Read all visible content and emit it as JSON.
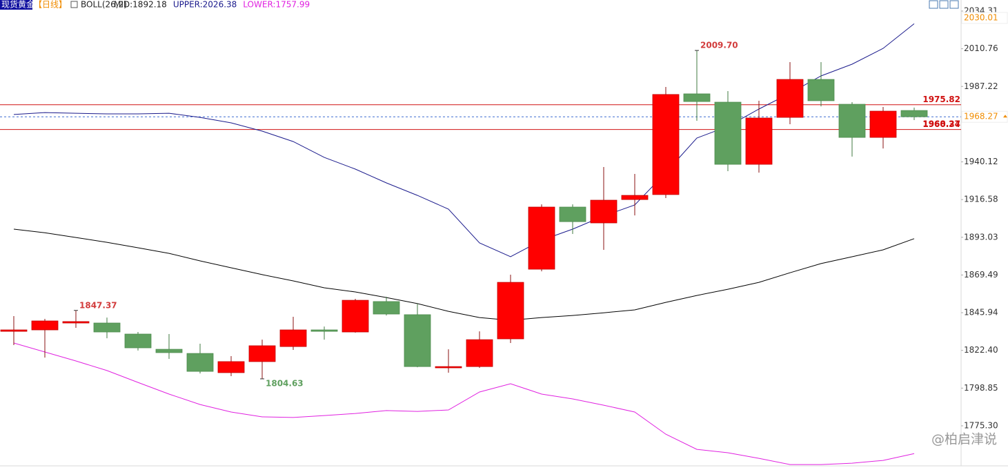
{
  "chart_data": {
    "type": "candlestick",
    "symbol": "现货黄金",
    "period": "【日线】",
    "indicator": "BOLL(26,2)",
    "watermark": "@柏启津说",
    "up_color": "#ff0000",
    "down_color": "#5fa05f",
    "open": [
      1834.3,
      1835.2,
      1839.5,
      1839.5,
      1832.6,
      1823.1,
      1820.5,
      1808.5,
      1815.4,
      1824.8,
      1835.2,
      1833.9,
      1852.9,
      1844.7,
      1811.5,
      1812.3,
      1829.6,
      1873.1,
      1911.9,
      1902.0,
      1916.6,
      1919.7,
      1982.6,
      1977.4,
      1938.6,
      1967.9,
      1991.6,
      1976.1,
      1955.4,
      1972.2
    ],
    "high": [
      1843.8,
      1842.1,
      1847.37,
      1842.9,
      1833.9,
      1832.6,
      1826.6,
      1818.8,
      1829.1,
      1843.4,
      1837.3,
      1854.6,
      1855.9,
      1851.6,
      1823.1,
      1834.3,
      1869.7,
      1913.6,
      1913.6,
      1936.9,
      1932.6,
      1986.9,
      2009.7,
      1984.3,
      1978.3,
      2002.4,
      2002.4,
      1977.4,
      1974.4,
      1974.0
    ],
    "low": [
      1825.7,
      1817.9,
      1836.5,
      1830.0,
      1822.3,
      1817.1,
      1808.0,
      1806.3,
      1804.63,
      1822.7,
      1829.1,
      1833.5,
      1844.2,
      1811.9,
      1808.5,
      1811.5,
      1827.0,
      1871.8,
      1895.1,
      1885.2,
      1906.7,
      1917.5,
      1965.8,
      1934.3,
      1933.4,
      1963.6,
      1974.8,
      1943.4,
      1948.5,
      1966.2
    ],
    "close": [
      1835.2,
      1840.8,
      1840.4,
      1833.9,
      1824.0,
      1821.0,
      1809.3,
      1815.4,
      1825.3,
      1835.2,
      1834.3,
      1853.7,
      1845.1,
      1812.3,
      1812.3,
      1829.1,
      1864.9,
      1911.9,
      1902.8,
      1916.2,
      1919.2,
      1982.2,
      1977.8,
      1938.6,
      1967.5,
      1991.6,
      1978.3,
      1955.4,
      1971.8,
      1968.27
    ],
    "high_labels": [
      null,
      null,
      "1847.37",
      null,
      null,
      null,
      null,
      null,
      null,
      null,
      null,
      null,
      null,
      null,
      null,
      null,
      null,
      null,
      null,
      null,
      null,
      null,
      "2009.70",
      null,
      null,
      null,
      null,
      null,
      null,
      null
    ],
    "low_labels": [
      null,
      null,
      null,
      null,
      null,
      null,
      null,
      null,
      "1804.63",
      null,
      null,
      null,
      null,
      null,
      null,
      null,
      null,
      null,
      null,
      null,
      null,
      null,
      null,
      null,
      null,
      null,
      null,
      null,
      null,
      null
    ],
    "high_label_color": "#d23c3c",
    "low_label_color": "#5fa05f",
    "bands": [
      {
        "name": "MID:1892.18",
        "color": "#000000",
        "values": [
          1898.1,
          1895.9,
          1892.9,
          1889.9,
          1886.5,
          1883.0,
          1878.3,
          1874.0,
          1869.7,
          1865.8,
          1861.5,
          1858.9,
          1855.4,
          1851.6,
          1846.8,
          1842.9,
          1841.2,
          1842.9,
          1844.2,
          1845.9,
          1847.7,
          1852.4,
          1856.7,
          1860.6,
          1864.9,
          1870.9,
          1876.6,
          1880.9,
          1885.2,
          1892.18
        ]
      },
      {
        "name": "UPPER:2026.38",
        "color": "#1a1a8c",
        "values": [
          1969.7,
          1970.9,
          1970.5,
          1970.1,
          1970.1,
          1970.5,
          1967.9,
          1964.5,
          1959.3,
          1952.8,
          1942.9,
          1935.6,
          1927.0,
          1919.2,
          1910.6,
          1889.5,
          1880.9,
          1891.2,
          1898.1,
          1906.3,
          1913.2,
          1933.4,
          1955.0,
          1962.3,
          1973.1,
          1983.0,
          1993.8,
          2001.1,
          2011.0,
          2026.38
        ]
      },
      {
        "name": "LOWER:1757.99",
        "color": "#e020e0",
        "values": [
          1827.0,
          1821.4,
          1815.8,
          1809.8,
          1802.4,
          1795.1,
          1788.6,
          1783.9,
          1780.9,
          1780.5,
          1781.7,
          1783.0,
          1784.8,
          1784.3,
          1785.2,
          1796.4,
          1801.6,
          1795.1,
          1792.1,
          1788.2,
          1783.9,
          1770.1,
          1760.6,
          1758.5,
          1755.0,
          1751.1,
          1751.1,
          1752.0,
          1753.7,
          1757.99
        ]
      }
    ],
    "hlines": [
      {
        "value": 1975.82,
        "label": "1975.82",
        "color": "#d01010"
      },
      {
        "value": 1960.34,
        "label": "1960.34",
        "color": "#d01010"
      }
    ],
    "last_price": {
      "value": 1968.27,
      "label": "1968.27",
      "color": "#3a6ad0"
    },
    "axis_markers": [
      {
        "value": 2030.01,
        "label": "2030.01"
      },
      {
        "value": 1968.27,
        "label": "1968.27"
      }
    ],
    "axis_marker_color": "#f08c00",
    "ylim": [
      1750.3,
      2041.2
    ],
    "yticks": [
      2034.31,
      2010.76,
      1987.22,
      1940.12,
      1916.58,
      1893.03,
      1869.49,
      1845.94,
      {
        "value": 1822.4,
        "label": "1822.40"
      },
      1798.85,
      {
        "value": 1775.3,
        "label": "1775.30"
      }
    ]
  }
}
